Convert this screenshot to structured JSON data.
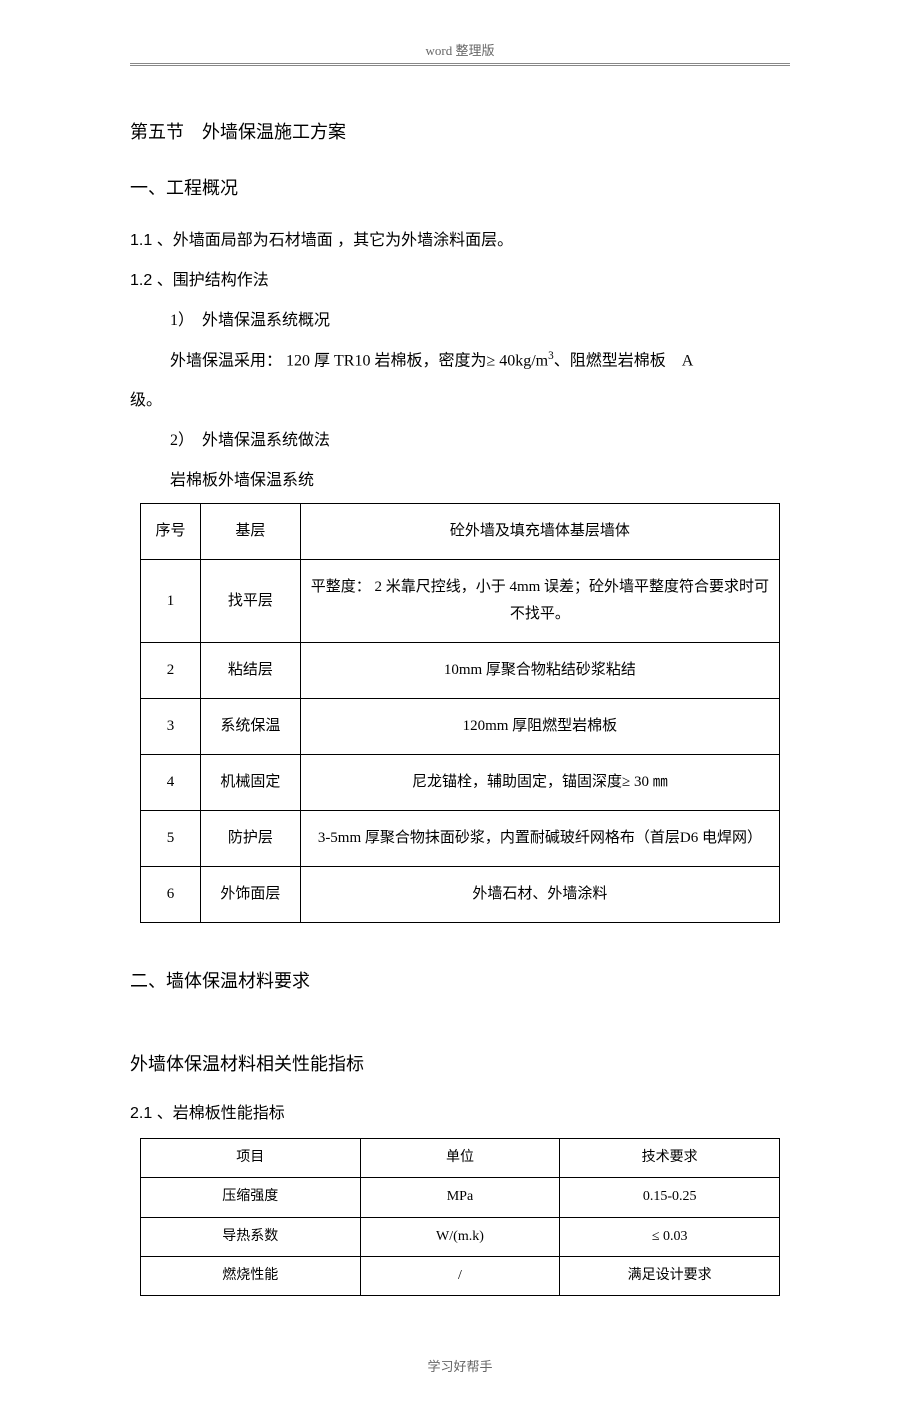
{
  "header": "word 整理版",
  "footer": "学习好帮手",
  "section_title": "第五节　外墙保温施工方案",
  "h1_1": "一、工程概况",
  "p_1_1": "1.1 、外墙面局部为石材墙面 ，其它为外墙涂料面层。",
  "p_1_2": "1.2 、围护结构作法",
  "p_1_2_1": "1）　外墙保温系统概况",
  "p_1_2_1_body_a": "外墙保温采用： 120 厚 TR10 岩棉板，密度为≥ 40kg/m",
  "p_1_2_1_body_b": "、阻燃型岩棉板　A",
  "p_1_2_1_body_c": "级。",
  "p_1_2_2": "2）　外墙保温系统做法",
  "table1_caption": "岩棉板外墙保温系统",
  "table1": {
    "header": [
      "序号",
      "基层",
      "砼外墙及填充墙体基层墙体"
    ],
    "rows": [
      [
        "1",
        "找平层",
        "平整度： 2 米靠尺控线，小于 4mm 误差；砼外墙平整度符合要求时可不找平。"
      ],
      [
        "2",
        "粘结层",
        "10mm 厚聚合物粘结砂浆粘结"
      ],
      [
        "3",
        "系统保温",
        "120mm 厚阻燃型岩棉板"
      ],
      [
        "4",
        "机械固定",
        "尼龙锚栓，辅助固定，锚固深度≥ 30 ㎜"
      ],
      [
        "5",
        "防护层",
        "3-5mm 厚聚合物抹面砂浆，内置耐碱玻纤网格布（首层D6 电焊网）"
      ],
      [
        "6",
        "外饰面层",
        "外墙石材、外墙涂料"
      ]
    ]
  },
  "h1_2": "二、墙体保温材料要求",
  "h2_1": "外墙体保温材料相关性能指标",
  "p_2_1": "2.1 、岩棉板性能指标",
  "table2": {
    "header": [
      "项目",
      "单位",
      "技术要求"
    ],
    "rows": [
      [
        "压缩强度",
        "MPa",
        "0.15-0.25"
      ],
      [
        "导热系数",
        "W/(m.k)",
        "≤ 0.03"
      ],
      [
        "燃烧性能",
        "/",
        "满足设计要求"
      ]
    ]
  }
}
